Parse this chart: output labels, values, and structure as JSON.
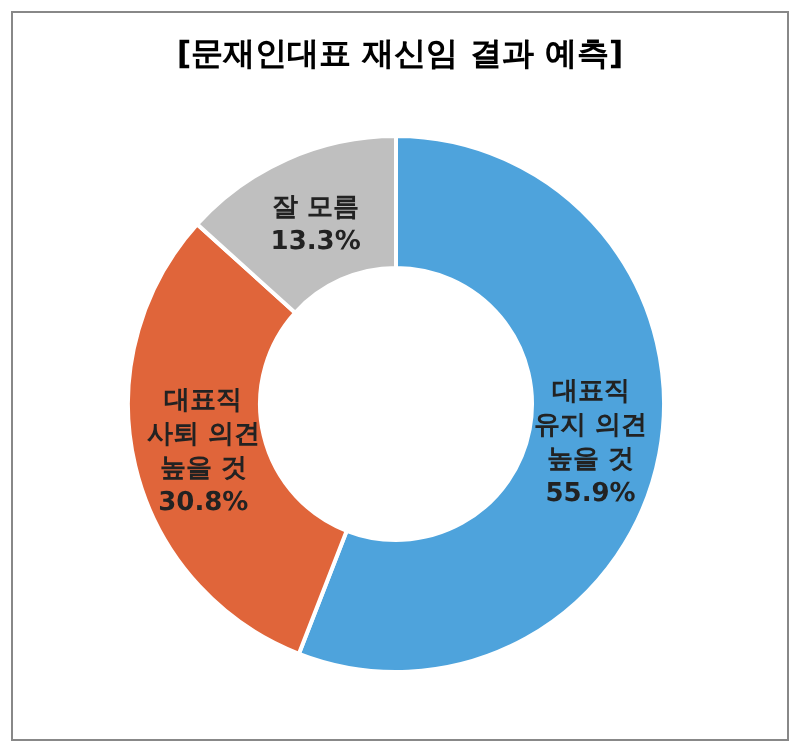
{
  "chart_data": {
    "type": "donut",
    "title": "[문재인대표 재신임 결과 예측]",
    "categories": [
      "대표직\n유지 의견\n높을 것",
      "대표직\n사퇴 의견\n높을 것",
      "잘 모름"
    ],
    "values": [
      55.9,
      30.8,
      13.3
    ],
    "value_labels": [
      "55.9%",
      "30.8%",
      "13.3%"
    ],
    "colors": [
      "#4ea3dc",
      "#e0653a",
      "#bfbfbf"
    ]
  }
}
